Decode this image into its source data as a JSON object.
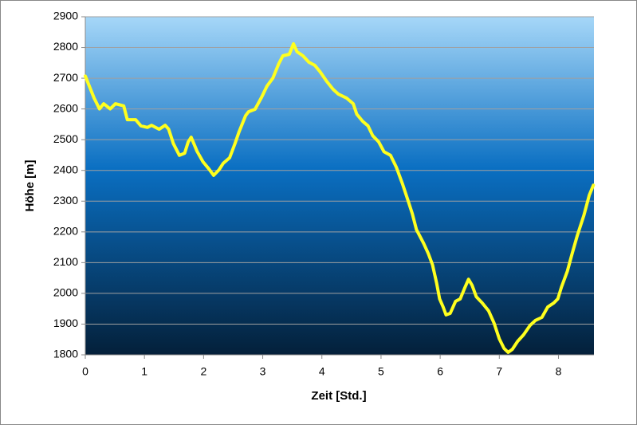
{
  "chart_data": {
    "type": "line",
    "x_label": "Zeit [Std.]",
    "y_label": "Höhe [m]",
    "x": [
      0,
      0.15,
      0.24,
      0.31,
      0.42,
      0.51,
      0.65,
      0.71,
      0.85,
      0.94,
      1.05,
      1.12,
      1.25,
      1.35,
      1.41,
      1.49,
      1.59,
      1.68,
      1.74,
      1.79,
      1.89,
      1.99,
      2.09,
      2.17,
      2.26,
      2.33,
      2.44,
      2.53,
      2.6,
      2.71,
      2.76,
      2.87,
      2.98,
      3.07,
      3.17,
      3.27,
      3.34,
      3.45,
      3.52,
      3.58,
      3.68,
      3.78,
      3.88,
      3.97,
      4.08,
      4.19,
      4.28,
      4.42,
      4.53,
      4.59,
      4.69,
      4.78,
      4.86,
      4.96,
      5.05,
      5.16,
      5.26,
      5.36,
      5.45,
      5.53,
      5.6,
      5.72,
      5.8,
      5.87,
      5.94,
      5.99,
      6.05,
      6.1,
      6.17,
      6.26,
      6.34,
      6.41,
      6.48,
      6.54,
      6.61,
      6.71,
      6.82,
      6.91,
      7.0,
      7.08,
      7.15,
      7.22,
      7.31,
      7.41,
      7.52,
      7.61,
      7.72,
      7.82,
      7.92,
      7.99,
      8.05,
      8.15,
      8.23,
      8.32,
      8.43,
      8.52,
      8.59
    ],
    "values": [
      2707,
      2635,
      2600,
      2617,
      2600,
      2617,
      2610,
      2565,
      2565,
      2545,
      2540,
      2547,
      2534,
      2547,
      2534,
      2487,
      2449,
      2456,
      2493,
      2508,
      2462,
      2428,
      2405,
      2384,
      2402,
      2423,
      2441,
      2487,
      2526,
      2578,
      2591,
      2599,
      2638,
      2674,
      2700,
      2747,
      2773,
      2778,
      2812,
      2786,
      2773,
      2752,
      2742,
      2721,
      2690,
      2664,
      2648,
      2635,
      2617,
      2583,
      2560,
      2545,
      2513,
      2493,
      2461,
      2449,
      2410,
      2358,
      2306,
      2259,
      2207,
      2163,
      2129,
      2093,
      2033,
      1982,
      1956,
      1930,
      1935,
      1974,
      1982,
      2015,
      2046,
      2026,
      1989,
      1969,
      1943,
      1904,
      1852,
      1821,
      1808,
      1818,
      1844,
      1865,
      1896,
      1912,
      1922,
      1956,
      1969,
      1982,
      2020,
      2072,
      2129,
      2189,
      2254,
      2319,
      2352
    ],
    "color": "#ffff1e",
    "xlim": [
      0,
      8.6
    ],
    "xticks": [
      0,
      1,
      2,
      3,
      4,
      5,
      6,
      7,
      8
    ],
    "ylim": [
      1800,
      2900
    ],
    "yticks": [
      1800,
      1900,
      2000,
      2100,
      2200,
      2300,
      2400,
      2500,
      2600,
      2700,
      2800,
      2900
    ],
    "grid": true
  }
}
